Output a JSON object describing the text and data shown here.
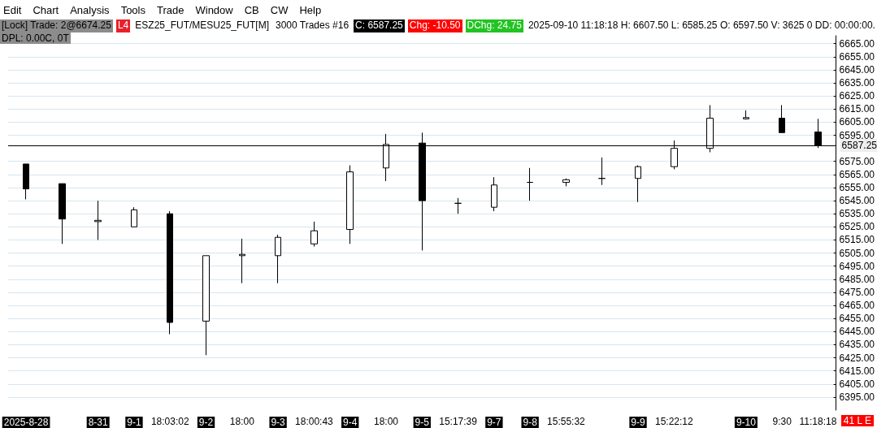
{
  "chart_data": {
    "type": "candlestick",
    "categories": [
      "2025-8-28",
      null,
      "8-31",
      "9-1",
      "18:03:02",
      "9-2",
      "18:00",
      "9-3",
      "18:00:43",
      "9-4",
      "18:00",
      "9-5",
      "15:17:39",
      "9-7",
      "9-8",
      "15:55:32",
      null,
      "9-9",
      "15:22:12",
      null,
      "9-10",
      "9:30",
      "11:18:18"
    ],
    "ohlc": [
      [
        6573,
        6573,
        6546,
        6554
      ],
      [
        6558,
        6558,
        6512,
        6531
      ],
      [
        6529,
        6545,
        6515,
        6530
      ],
      [
        6525,
        6540,
        6525,
        6538
      ],
      [
        6535,
        6537,
        6443,
        6452
      ],
      [
        6453,
        6503,
        6427,
        6503
      ],
      [
        6503,
        6516,
        6482,
        6504
      ],
      [
        6503,
        6519,
        6482,
        6517
      ],
      [
        6512,
        6529,
        6510,
        6522
      ],
      [
        6523,
        6572,
        6512,
        6567
      ],
      [
        6570,
        6596,
        6560,
        6588
      ],
      [
        6589,
        6597,
        6507,
        6545
      ],
      [
        6543,
        6547,
        6535,
        6543
      ],
      [
        6540,
        6563,
        6537,
        6557
      ],
      [
        6559,
        6570,
        6545,
        6559
      ],
      [
        6559,
        6562,
        6556,
        6561
      ],
      [
        6562,
        6578,
        6557,
        6562
      ],
      [
        6562,
        6572,
        6544,
        6571
      ],
      [
        6571,
        6591,
        6569,
        6585
      ],
      [
        6585,
        6618,
        6582,
        6608
      ],
      [
        6607.5,
        6614,
        6607,
        6608.5
      ],
      [
        6608,
        6618,
        6597,
        6597
      ],
      [
        6597.5,
        6607.5,
        6585.25,
        6587.25
      ]
    ],
    "ylim": [
      6385,
      6671
    ],
    "yticks": [
      {
        "value": 6665,
        "label": "6665.00"
      },
      {
        "value": 6655,
        "label": "6655.00"
      },
      {
        "value": 6645,
        "label": "6645.00"
      },
      {
        "value": 6635,
        "label": "6635.00"
      },
      {
        "value": 6625,
        "label": "6625.00"
      },
      {
        "value": 6615,
        "label": "6615.00"
      },
      {
        "value": 6605,
        "label": "6605.00"
      },
      {
        "value": 6595,
        "label": "6595.00"
      },
      {
        "value": 6575,
        "label": "6575.00"
      },
      {
        "value": 6565,
        "label": "6565.00"
      },
      {
        "value": 6555,
        "label": "6555.00"
      },
      {
        "value": 6545,
        "label": "6545.00"
      },
      {
        "value": 6535,
        "label": "6535.00"
      },
      {
        "value": 6525,
        "label": "6525.00"
      },
      {
        "value": 6515,
        "label": "6515.00"
      },
      {
        "value": 6505,
        "label": "6505.00"
      },
      {
        "value": 6495,
        "label": "6495.00"
      },
      {
        "value": 6485,
        "label": "6485.00"
      },
      {
        "value": 6475,
        "label": "6475.00"
      },
      {
        "value": 6465,
        "label": "6465.00"
      },
      {
        "value": 6455,
        "label": "6455.00"
      },
      {
        "value": 6445,
        "label": "6445.00"
      },
      {
        "value": 6435,
        "label": "6435.00"
      },
      {
        "value": 6425,
        "label": "6425.00"
      },
      {
        "value": 6415,
        "label": "6415.00"
      },
      {
        "value": 6405,
        "label": "6405.00"
      },
      {
        "value": 6395,
        "label": "6395.00"
      }
    ],
    "grid": "y",
    "ref_lines": [
      {
        "axis": "y",
        "value": 6587.25,
        "label": "6587.25",
        "color": "#000000"
      }
    ],
    "annotations": [
      "Edit",
      "Chart",
      "Analysis",
      "Tools",
      "Trade",
      "Window",
      "CB",
      "CW",
      "Help",
      "[Lock] Trade: 2@6674.25",
      "L4",
      "ESZ25_FUT/MESU25_FUT[M]",
      "3000 Trades #16",
      "C: 6587.25",
      "Chg: -10.50",
      "DChg: 24.75",
      "2025-09-10 11:18:18 H: 6607.50 L: 6585.25 O: 6597.50 V: 3625 0 DD: 00:00:00.",
      "DPL: 0.00C, 0T",
      "41 L E"
    ]
  }
}
